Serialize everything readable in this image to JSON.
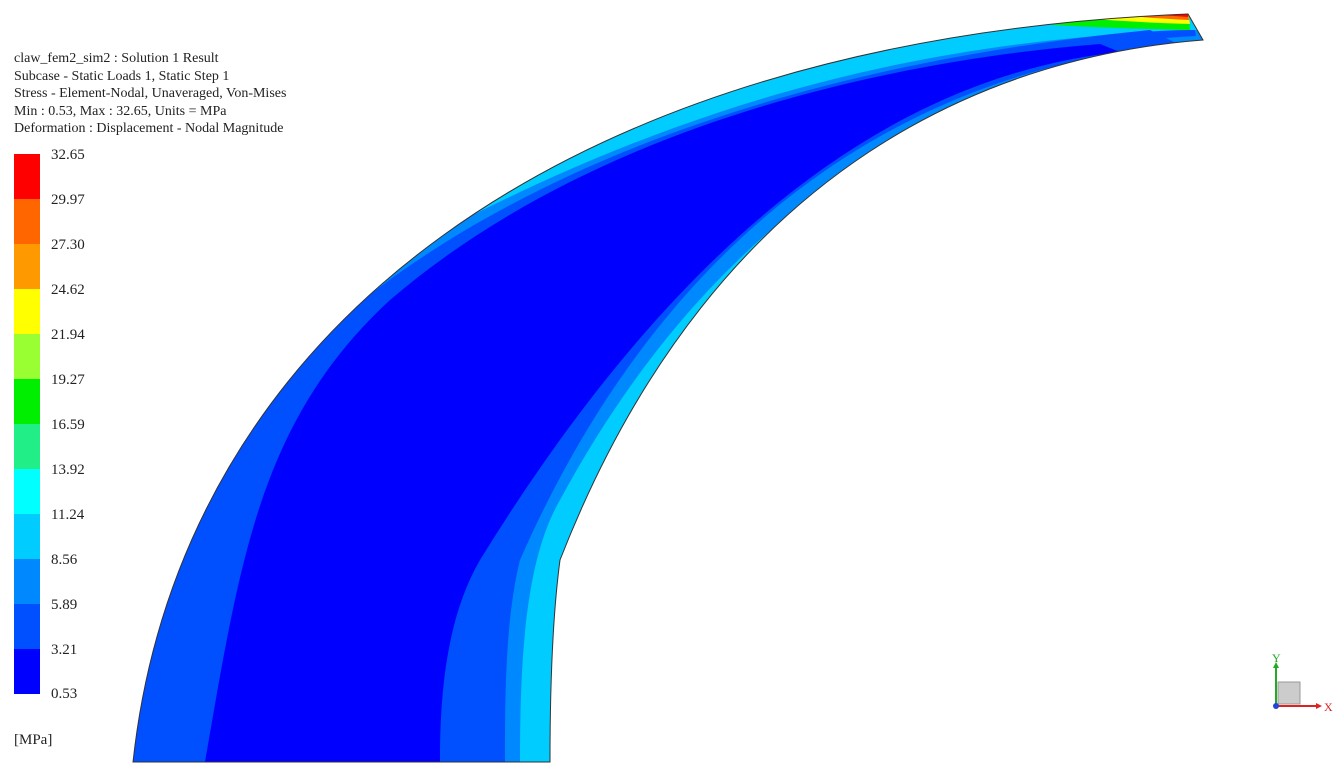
{
  "header": {
    "line1": "claw_fem2_sim2 : Solution 1 Result",
    "line2": "Subcase - Static Loads 1, Static Step 1",
    "line3": "Stress - Element-Nodal, Unaveraged, Von-Mises",
    "line4": "Min : 0.53, Max : 32.65, Units = MPa",
    "line5": "Deformation : Displacement - Nodal Magnitude"
  },
  "legend": {
    "units_label": "[MPa]",
    "ticks": [
      "32.65",
      "29.97",
      "27.30",
      "24.62",
      "21.94",
      "19.27",
      "16.59",
      "13.92",
      "11.24",
      "8.56",
      "5.89",
      "3.21",
      "0.53"
    ],
    "colors": [
      "#ff0000",
      "#ff6600",
      "#ff9900",
      "#ffff00",
      "#99ff33",
      "#00ee00",
      "#22ee88",
      "#00ffff",
      "#00ccff",
      "#0088ff",
      "#0050ff",
      "#0000ff"
    ]
  },
  "triad": {
    "y_label": "Y",
    "x_label": "X"
  }
}
